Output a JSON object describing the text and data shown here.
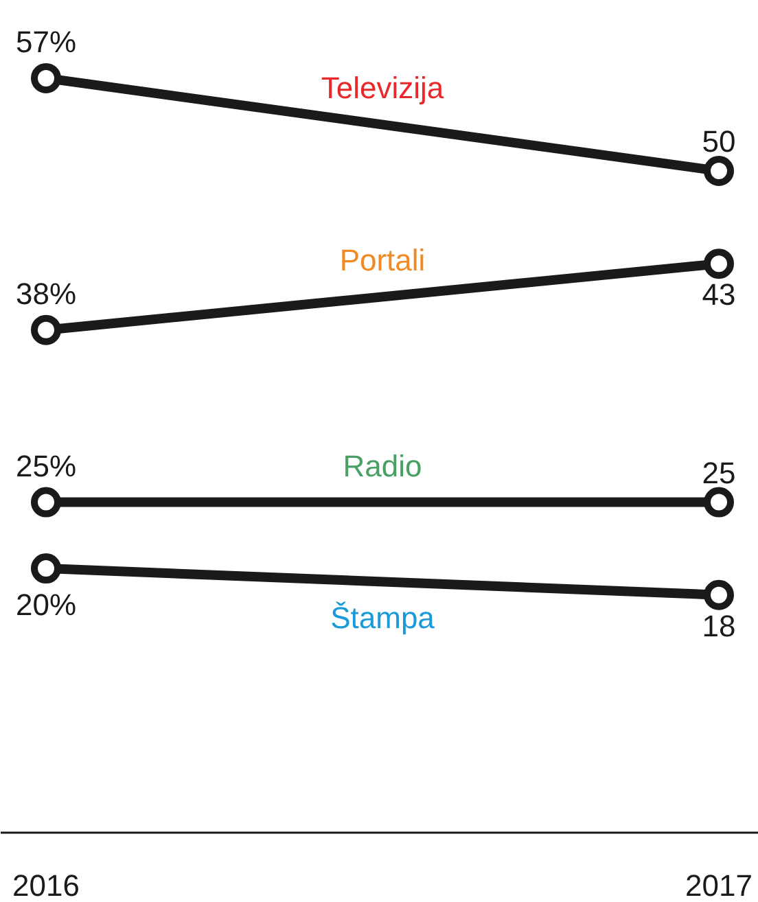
{
  "chart_data": {
    "type": "line",
    "categories": [
      "2016",
      "2017"
    ],
    "marker": "circle",
    "line_style": "solid",
    "grid": false,
    "colors": [
      "#e8282b",
      "#f08a24",
      "#4aa064",
      "#1a9ad8"
    ],
    "series": [
      {
        "name": "Televizija",
        "color": "#1a1a1a",
        "values": [
          57,
          50
        ],
        "value_labels": [
          "57%",
          "50"
        ]
      },
      {
        "name": "Portali",
        "color": "#1a1a1a",
        "values": [
          38,
          43
        ],
        "value_labels": [
          "38%",
          "43"
        ]
      },
      {
        "name": "Radio",
        "color": "#1a1a1a",
        "values": [
          25,
          25
        ],
        "value_labels": [
          "25%",
          "25"
        ]
      },
      {
        "name": "Štampa",
        "color": "#1a1a1a",
        "values": [
          20,
          18
        ],
        "value_labels": [
          "20%",
          "18"
        ]
      }
    ]
  }
}
